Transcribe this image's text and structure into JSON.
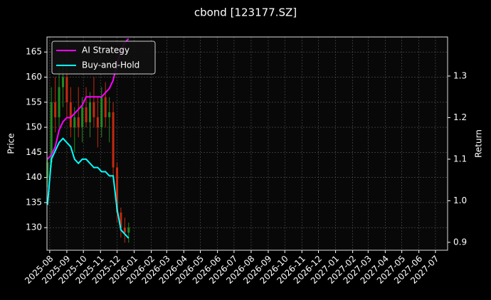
{
  "chart_data": {
    "type": "candlestick",
    "title": "cbond [123177.SZ]",
    "ylabel": "Price",
    "y2label": "Return",
    "x": [
      "2025-07-28",
      "2025-08-04",
      "2025-08-11",
      "2025-08-18",
      "2025-08-25",
      "2025-09-01",
      "2025-09-08",
      "2025-09-15",
      "2025-09-22",
      "2025-09-29",
      "2025-10-06",
      "2025-10-13",
      "2025-10-20",
      "2025-10-27",
      "2025-11-03",
      "2025-11-10",
      "2025-11-17",
      "2025-11-24",
      "2025-12-01",
      "2025-12-08",
      "2025-12-15",
      "2025-12-22"
    ],
    "open": [
      140,
      143,
      155,
      152,
      158,
      160,
      155,
      150,
      152,
      150,
      154,
      151,
      155,
      152,
      150,
      156,
      152,
      153,
      142,
      133,
      130,
      129
    ],
    "high": [
      144,
      158,
      160,
      162,
      163,
      162,
      158,
      154,
      158,
      156,
      158,
      157,
      160,
      156,
      158,
      159,
      156,
      155,
      143,
      134,
      132,
      131
    ],
    "low": [
      138,
      142,
      149,
      150,
      154,
      152,
      148,
      145,
      148,
      147,
      150,
      148,
      150,
      146,
      148,
      150,
      147,
      140,
      131,
      128,
      127,
      127
    ],
    "close": [
      143,
      155,
      152,
      158,
      160,
      155,
      150,
      152,
      150,
      154,
      151,
      155,
      152,
      150,
      156,
      152,
      153,
      142,
      133,
      130,
      129,
      130
    ],
    "up_color": "#1e8a1e",
    "down_color": "#c42a10",
    "series": [
      {
        "name": "AI Strategy",
        "color": "#ff00ff",
        "axis": "y2",
        "values": [
          1.1,
          1.11,
          1.13,
          1.17,
          1.19,
          1.2,
          1.2,
          1.21,
          1.22,
          1.23,
          1.25,
          1.25,
          1.25,
          1.25,
          1.25,
          1.26,
          1.27,
          1.29,
          1.33,
          1.36,
          1.38,
          1.39
        ]
      },
      {
        "name": "Buy-and-Hold",
        "color": "#00ffff",
        "axis": "y2",
        "values": [
          0.99,
          1.1,
          1.12,
          1.14,
          1.15,
          1.14,
          1.13,
          1.1,
          1.09,
          1.1,
          1.1,
          1.09,
          1.08,
          1.08,
          1.07,
          1.07,
          1.06,
          1.06,
          0.98,
          0.93,
          0.92,
          0.91
        ]
      }
    ],
    "xlim": [
      "2025-07-27",
      "2027-07-23"
    ],
    "xticks": [
      "2025-08",
      "2025-09",
      "2025-10",
      "2025-11",
      "2025-12",
      "2026-01",
      "2026-02",
      "2026-03",
      "2026-04",
      "2026-05",
      "2026-06",
      "2026-07",
      "2026-08",
      "2026-09",
      "2026-10",
      "2026-11",
      "2026-12",
      "2027-01",
      "2027-02",
      "2027-03",
      "2027-04",
      "2027-05",
      "2027-06",
      "2027-07"
    ],
    "ylim": [
      125.5,
      168
    ],
    "yticks": [
      130,
      135,
      140,
      145,
      150,
      155,
      160,
      165
    ],
    "y2lim": [
      0.881,
      1.394
    ],
    "y2ticks": [
      0.9,
      1.0,
      1.1,
      1.2,
      1.3
    ],
    "y2tick_labels": [
      "0.9",
      "1.0",
      "1.1",
      "1.2",
      "1.3"
    ],
    "grid": true,
    "legend": "upper left"
  }
}
